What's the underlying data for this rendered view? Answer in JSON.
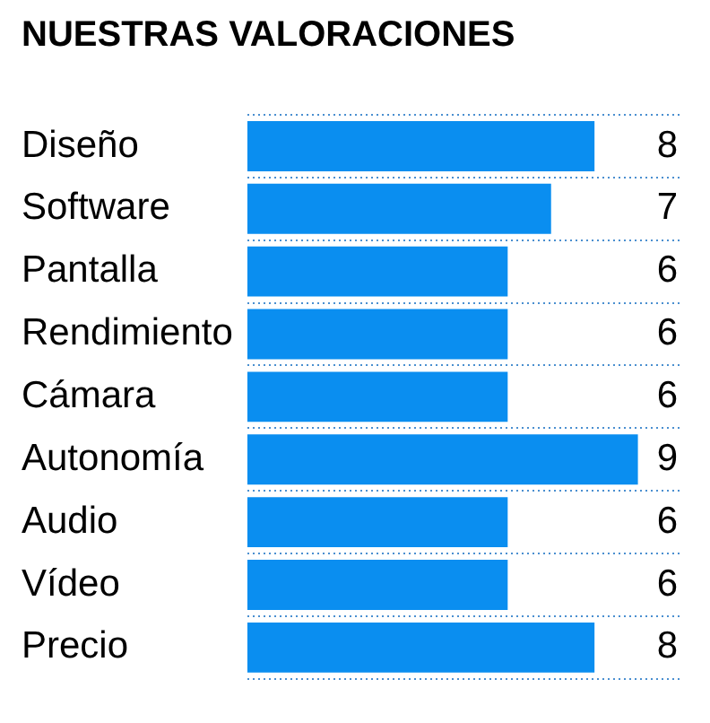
{
  "chart_data": {
    "type": "bar",
    "orientation": "horizontal",
    "title": "NUESTRAS VALORACIONES",
    "categories": [
      "Diseño",
      "Software",
      "Pantalla",
      "Rendimiento",
      "Cámara",
      "Autonomía",
      "Audio",
      "Vídeo",
      "Precio"
    ],
    "values": [
      8,
      7,
      6,
      6,
      6,
      9,
      6,
      6,
      8
    ],
    "color": "#0a8ef0",
    "data_labels": true,
    "grid": "y"
  }
}
